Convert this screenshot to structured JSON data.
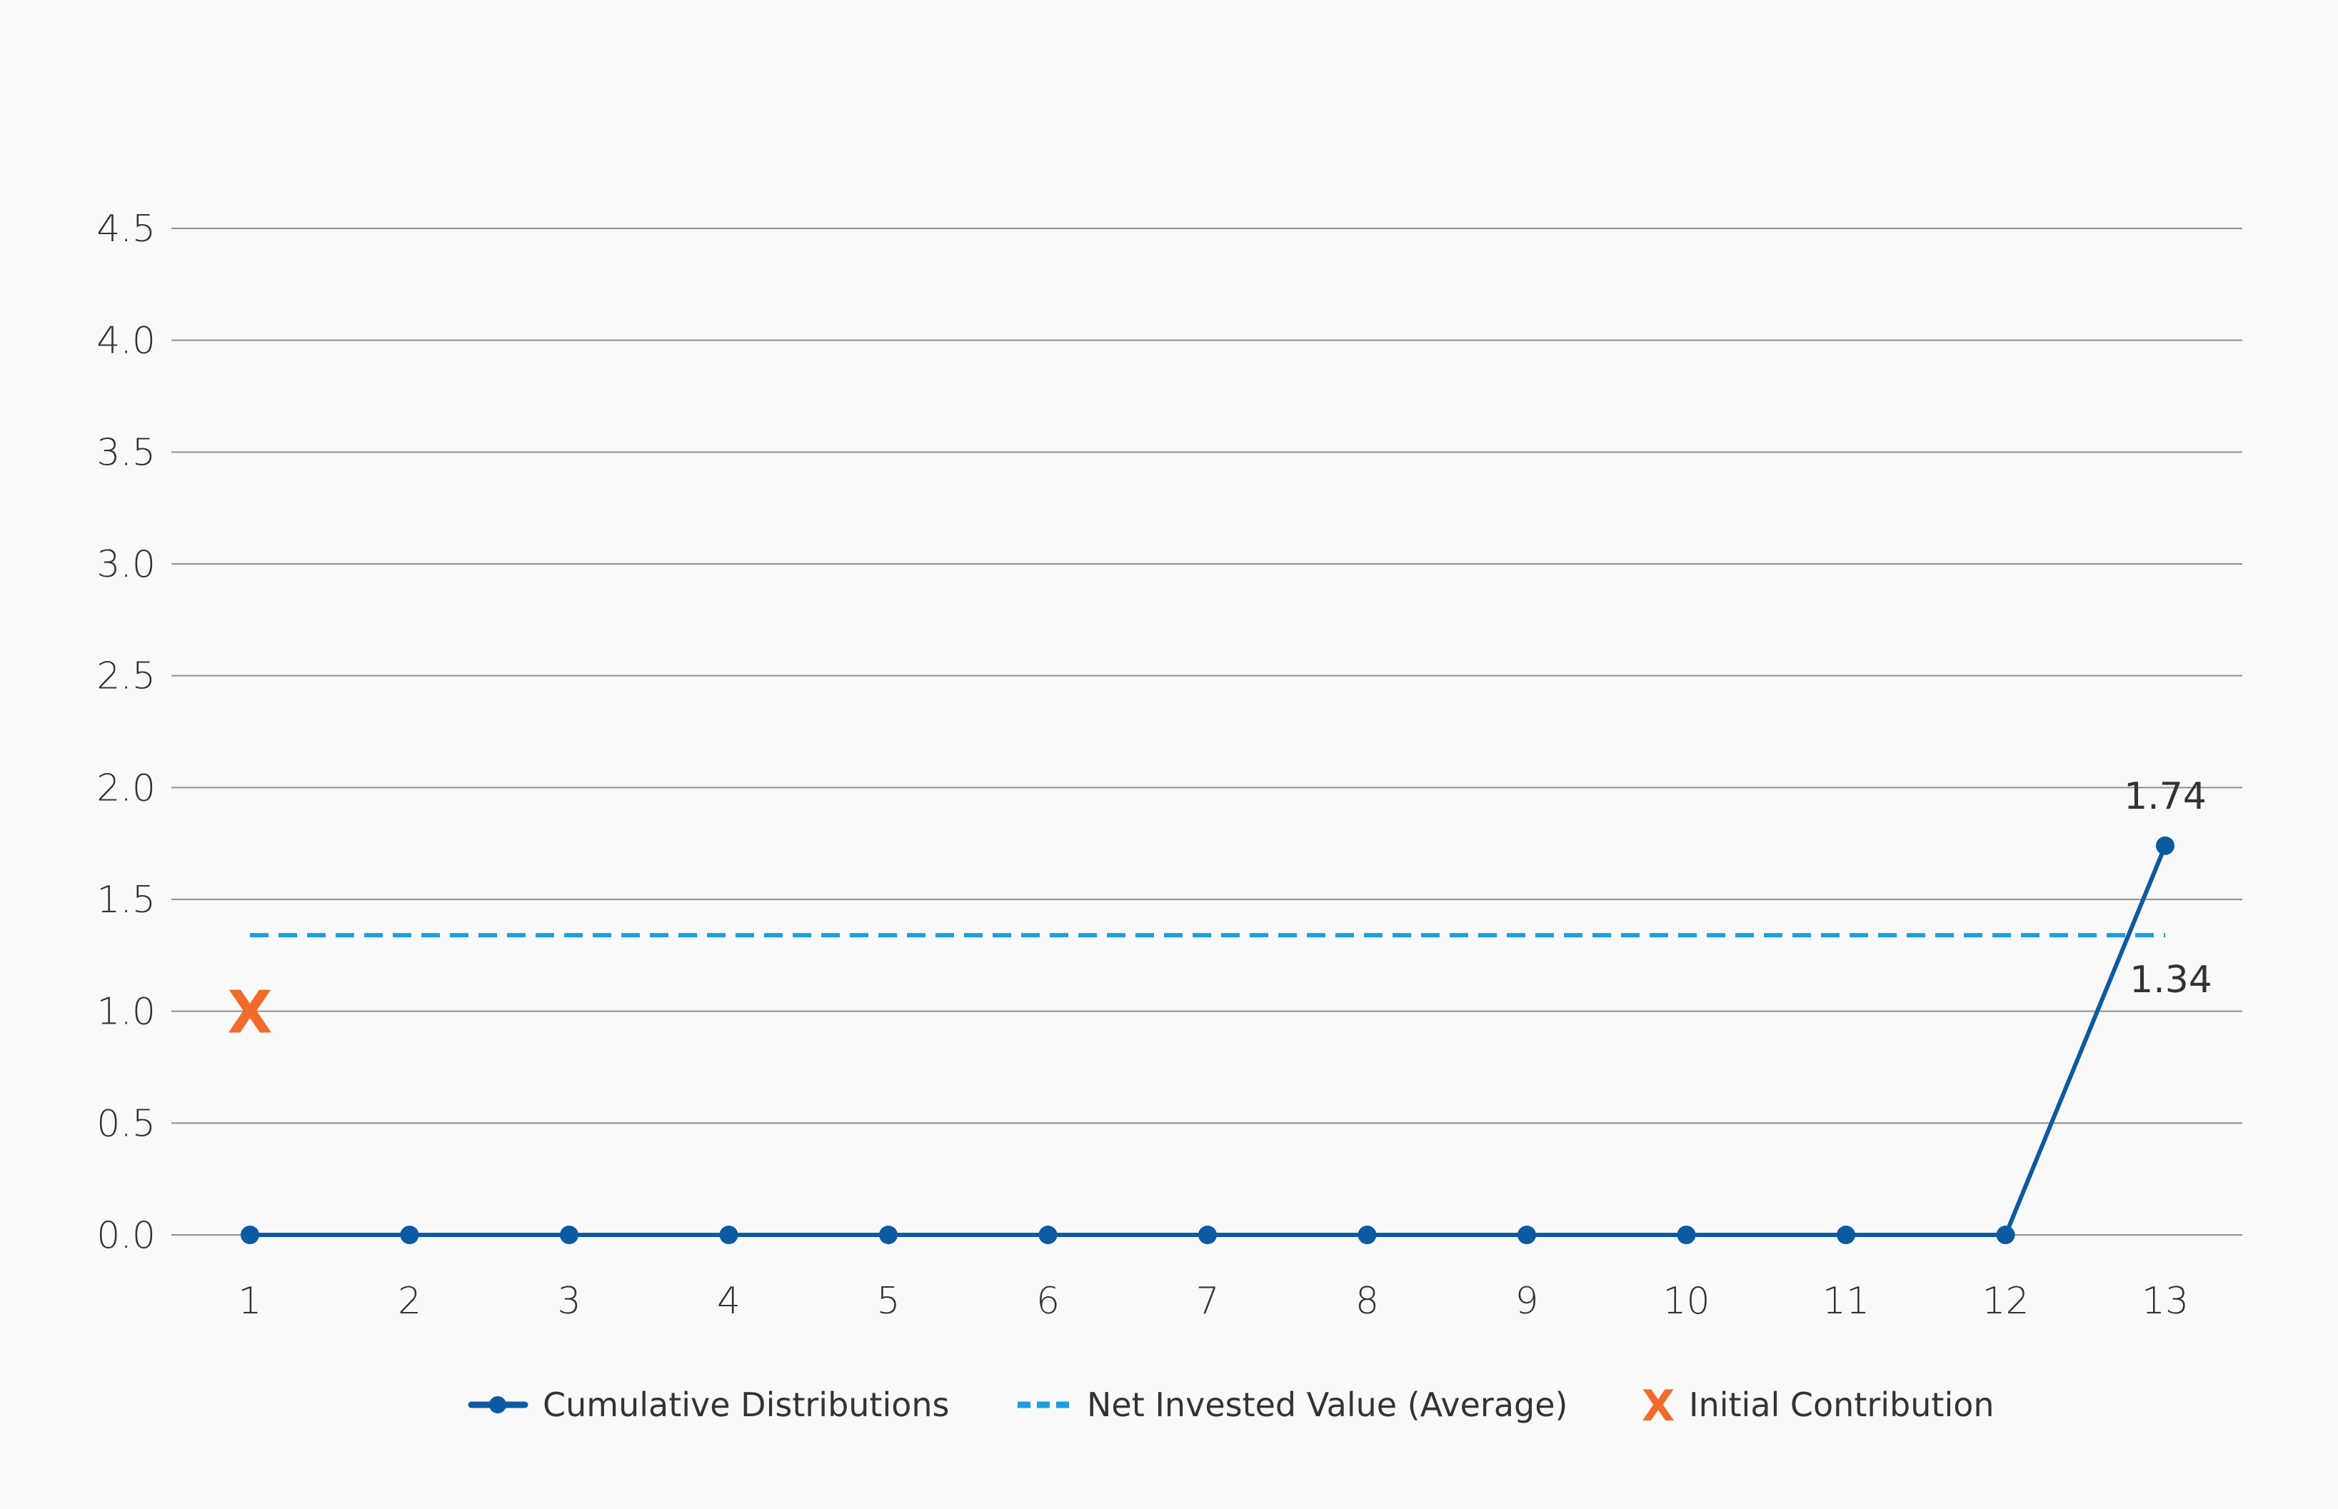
{
  "chart_data": {
    "type": "line",
    "x": [
      "1",
      "2",
      "3",
      "4",
      "5",
      "6",
      "7",
      "8",
      "9",
      "10",
      "11",
      "12",
      "13"
    ],
    "ylim": [
      0,
      4.5
    ],
    "yticks": [
      "0.0",
      "0.5",
      "1.0",
      "1.5",
      "2.0",
      "2.5",
      "3.0",
      "3.5",
      "4.0",
      "4.5"
    ],
    "grid": true,
    "legend_position": "bottom",
    "series": [
      {
        "name": "Cumulative Distributions",
        "style": "solid-line-with-markers",
        "color": "#0b5aa2",
        "values": [
          0,
          0,
          0,
          0,
          0,
          0,
          0,
          0,
          0,
          0,
          0,
          0,
          1.74
        ],
        "end_label": "1.74"
      },
      {
        "name": "Net Invested Value (Average)",
        "style": "dashed-line",
        "color": "#1a9fe0",
        "values": [
          1.34,
          1.34,
          1.34,
          1.34,
          1.34,
          1.34,
          1.34,
          1.34,
          1.34,
          1.34,
          1.34,
          1.34,
          1.34
        ],
        "end_label": "1.34"
      },
      {
        "name": "Initial Contribution",
        "style": "x-marker",
        "color": "#f26b2a",
        "marker_text": "X",
        "points": [
          {
            "x": "1",
            "y": 1.0
          }
        ]
      }
    ]
  }
}
